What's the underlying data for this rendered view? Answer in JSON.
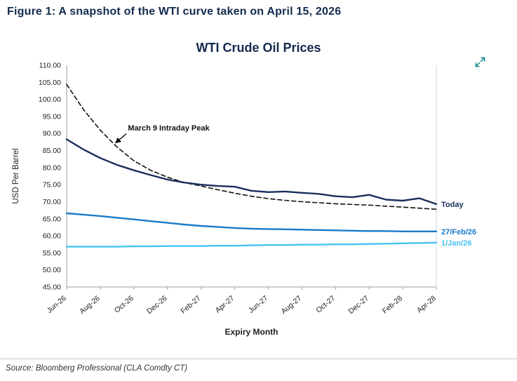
{
  "figure_caption": "Figure 1: A snapshot of the WTI curve taken on April 15, 2026",
  "source": "Source: Bloomberg Professional (CLA Comdty CT)",
  "icons": {
    "expand": "expand-arrows-icon"
  },
  "colors": {
    "heading_navy": "#122a4d",
    "icon_teal": "#1e8b8b",
    "axis_text": "#222222",
    "axis_line": "#9aa0a6"
  },
  "chart_data": {
    "type": "line",
    "title": "WTI Crude Oil Prices",
    "xlabel": "Expiry Month",
    "ylabel": "USD Per Barrel",
    "ylim": [
      45,
      110
    ],
    "ytick_step": 5,
    "grid": false,
    "legend_position": "right-inline",
    "x_categories": [
      "Jun-26",
      "Jul-26",
      "Aug-26",
      "Sep-26",
      "Oct-26",
      "Nov-26",
      "Dec-26",
      "Jan-27",
      "Feb-27",
      "Mar-27",
      "Apr-27",
      "May-27",
      "Jun-27",
      "Jul-27",
      "Aug-27",
      "Sep-27",
      "Oct-27",
      "Nov-27",
      "Dec-27",
      "Jan-28",
      "Feb-28",
      "Mar-28",
      "Apr-28"
    ],
    "xtick_labels": [
      "Jun-26",
      "Aug-26",
      "Oct-26",
      "Dec-26",
      "Feb-27",
      "Apr-27",
      "Jun-27",
      "Aug-27",
      "Oct-27",
      "Dec-27",
      "Feb-28",
      "Apr-28"
    ],
    "series": [
      {
        "name": "March 9 Intraday Peak",
        "color": "#111111",
        "dashed": true,
        "label_right": false,
        "values": [
          104.4,
          97.0,
          91.0,
          86.0,
          82.0,
          79.2,
          77.2,
          75.6,
          74.6,
          73.5,
          72.5,
          71.6,
          70.9,
          70.4,
          70.0,
          69.7,
          69.4,
          69.2,
          69.0,
          68.7,
          68.4,
          68.1,
          67.8
        ]
      },
      {
        "name": "Today",
        "color": "#1a2f5e",
        "dashed": false,
        "label_right": true,
        "values": [
          88.3,
          85.3,
          82.8,
          80.8,
          79.2,
          77.8,
          76.5,
          75.6,
          75.0,
          74.6,
          74.4,
          73.2,
          72.8,
          73.0,
          72.6,
          72.3,
          71.6,
          71.3,
          72.0,
          70.6,
          70.3,
          71.0,
          69.3
        ]
      },
      {
        "name": "27/Feb/26",
        "color": "#1a7ac9",
        "dashed": false,
        "label_right": true,
        "values": [
          66.6,
          66.2,
          65.8,
          65.3,
          64.8,
          64.3,
          63.8,
          63.3,
          62.9,
          62.6,
          62.3,
          62.1,
          62.0,
          61.9,
          61.8,
          61.7,
          61.6,
          61.5,
          61.4,
          61.4,
          61.3,
          61.3,
          61.3
        ]
      },
      {
        "name": "1/Jan/26",
        "color": "#45c2f0",
        "dashed": false,
        "label_right": true,
        "values": [
          56.8,
          56.8,
          56.8,
          56.8,
          56.9,
          56.9,
          57.0,
          57.0,
          57.0,
          57.1,
          57.1,
          57.2,
          57.3,
          57.3,
          57.4,
          57.4,
          57.5,
          57.5,
          57.6,
          57.7,
          57.8,
          57.9,
          58.0
        ]
      }
    ],
    "annotation": {
      "text": "March 9 Intraday Peak",
      "text_at": [
        3.65,
        90.9
      ],
      "arrow_from": [
        3.55,
        89.9
      ],
      "arrow_to": [
        2.9,
        87.2
      ]
    }
  }
}
